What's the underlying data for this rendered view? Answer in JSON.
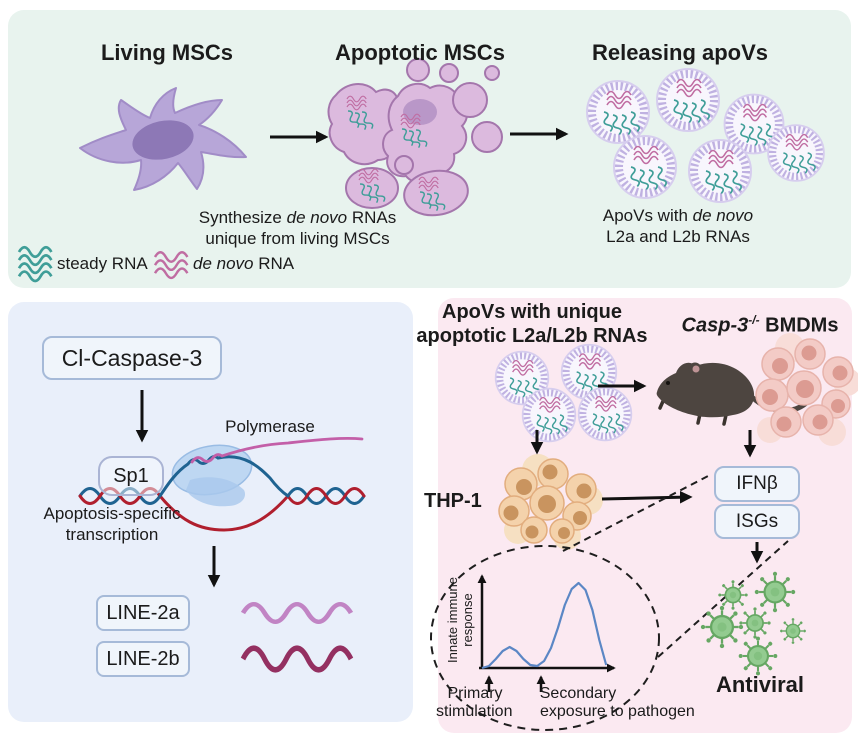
{
  "panels": {
    "top": {
      "titles": {
        "living": "Living MSCs",
        "apoptotic": "Apoptotic MSCs",
        "releasing": "Releasing apoVs"
      },
      "caption_synthesize": {
        "pre": "Synthesize ",
        "italic": "de novo",
        "post": " RNAs",
        "line2": "unique from living MSCs"
      },
      "caption_apovs": {
        "pre": "ApoVs with ",
        "italic": "de novo",
        "line2": "L2a and L2b RNAs"
      },
      "legend": {
        "steady_label": "steady RNA",
        "denovo_italic": "de novo",
        "denovo_label": " RNA"
      }
    },
    "left": {
      "caspase_box": "Cl-Caspase-3",
      "polymerase_label": "Polymerase",
      "sp1_label": "Sp1",
      "transcription_line1": "Apoptosis-specific",
      "transcription_line2": "transcription",
      "line2a_box": "LINE-2a",
      "line2b_box": "LINE-2b"
    },
    "right": {
      "title_line1": "ApoVs with unique",
      "title_line2": "apoptotic L2a/L2b RNAs",
      "casp": {
        "italic": "Casp-3",
        "sup": "-/-",
        "rest": " BMDMs"
      },
      "thp1_label": "THP-1",
      "ifnb_box": "IFNβ",
      "isgs_box": "ISGs",
      "antiviral_label": "Antiviral",
      "inset": {
        "ylabel_line1": "Innate immune",
        "ylabel_line2": "response",
        "primary_line1": "Primary",
        "primary_line2": "stimulation",
        "secondary_line1": "Secondary",
        "secondary_line2": "exposure to pathogen"
      }
    }
  },
  "chart_data": {
    "type": "line",
    "title": "",
    "ylabel": "Innate immune response",
    "xlabel": "",
    "x": [
      0,
      0.5,
      1,
      1.5,
      2,
      2.5,
      3,
      3.5,
      4,
      4.5,
      5,
      5.5,
      6,
      6.5,
      7,
      7.5,
      8,
      8.5,
      9
    ],
    "y": [
      0,
      2,
      9,
      17,
      21,
      17,
      9,
      3,
      2,
      7,
      20,
      40,
      63,
      79,
      85,
      78,
      58,
      28,
      3
    ],
    "xlim": [
      0,
      10
    ],
    "ylim": [
      0,
      100
    ],
    "grid": false,
    "legend_position": "none",
    "line_color": "#5b87c5",
    "annotations": [
      {
        "label": "Primary stimulation",
        "x": 0.5
      },
      {
        "label": "Secondary exposure to pathogen",
        "x": 4.3
      }
    ]
  },
  "colors": {
    "top_panel_bg": "#e8f3ee",
    "left_panel_bg": "#e9effa",
    "right_panel_bg": "#fbe9f1",
    "box_fill": "#f0f5fb",
    "box_border": "#a6bad8",
    "steady_rna_teal": "#3f9e98",
    "denovo_rna_pink": "#c06da2",
    "line2a_wave": "#c184c4",
    "line2b_wave": "#943061",
    "dna_blue": "#1f6391",
    "dna_red": "#b01f2e",
    "rna_magenta": "#c35fa8",
    "inset_curve_blue": "#5b87c5",
    "virus_green": "#93cb90",
    "arrow_black": "#111111"
  }
}
